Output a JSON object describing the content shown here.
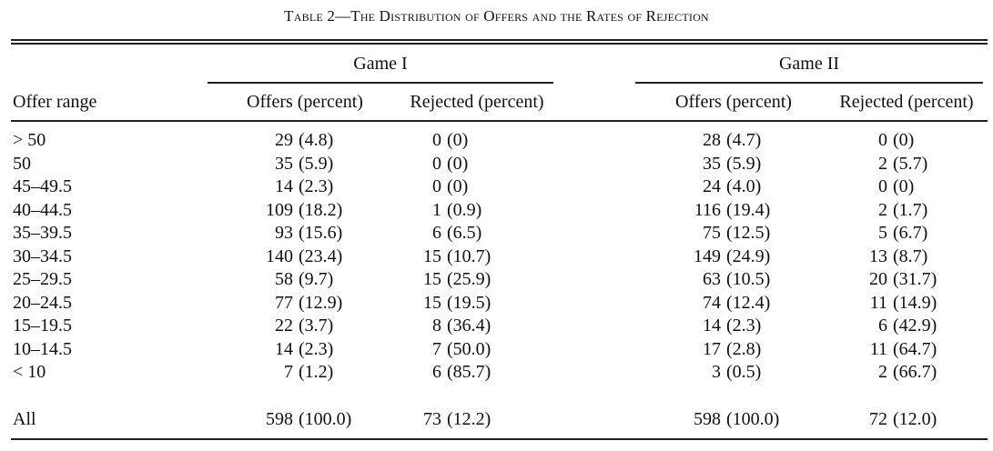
{
  "table": {
    "title": "Table 2—The Distribution of Offers and the Rates of Rejection",
    "row_header": "Offer range",
    "groups": [
      {
        "label": "Game I",
        "columns": [
          "Offers (percent)",
          "Rejected (percent)"
        ]
      },
      {
        "label": "Game II",
        "columns": [
          "Offers (percent)",
          "Rejected (percent)"
        ]
      }
    ],
    "rows": [
      {
        "range": "> 50",
        "g1_offers": "29",
        "g1_offers_pct": "(4.8)",
        "g1_rej": "0",
        "g1_rej_pct": "(0)",
        "g2_offers": "28",
        "g2_offers_pct": "(4.7)",
        "g2_rej": "0",
        "g2_rej_pct": "(0)"
      },
      {
        "range": "50",
        "g1_offers": "35",
        "g1_offers_pct": "(5.9)",
        "g1_rej": "0",
        "g1_rej_pct": "(0)",
        "g2_offers": "35",
        "g2_offers_pct": "(5.9)",
        "g2_rej": "2",
        "g2_rej_pct": "(5.7)"
      },
      {
        "range": "45–49.5",
        "g1_offers": "14",
        "g1_offers_pct": "(2.3)",
        "g1_rej": "0",
        "g1_rej_pct": "(0)",
        "g2_offers": "24",
        "g2_offers_pct": "(4.0)",
        "g2_rej": "0",
        "g2_rej_pct": "(0)"
      },
      {
        "range": "40–44.5",
        "g1_offers": "109",
        "g1_offers_pct": "(18.2)",
        "g1_rej": "1",
        "g1_rej_pct": "(0.9)",
        "g2_offers": "116",
        "g2_offers_pct": "(19.4)",
        "g2_rej": "2",
        "g2_rej_pct": "(1.7)"
      },
      {
        "range": "35–39.5",
        "g1_offers": "93",
        "g1_offers_pct": "(15.6)",
        "g1_rej": "6",
        "g1_rej_pct": "(6.5)",
        "g2_offers": "75",
        "g2_offers_pct": "(12.5)",
        "g2_rej": "5",
        "g2_rej_pct": "(6.7)"
      },
      {
        "range": "30–34.5",
        "g1_offers": "140",
        "g1_offers_pct": "(23.4)",
        "g1_rej": "15",
        "g1_rej_pct": "(10.7)",
        "g2_offers": "149",
        "g2_offers_pct": "(24.9)",
        "g2_rej": "13",
        "g2_rej_pct": "(8.7)"
      },
      {
        "range": "25–29.5",
        "g1_offers": "58",
        "g1_offers_pct": "(9.7)",
        "g1_rej": "15",
        "g1_rej_pct": "(25.9)",
        "g2_offers": "63",
        "g2_offers_pct": "(10.5)",
        "g2_rej": "20",
        "g2_rej_pct": "(31.7)"
      },
      {
        "range": "20–24.5",
        "g1_offers": "77",
        "g1_offers_pct": "(12.9)",
        "g1_rej": "15",
        "g1_rej_pct": "(19.5)",
        "g2_offers": "74",
        "g2_offers_pct": "(12.4)",
        "g2_rej": "11",
        "g2_rej_pct": "(14.9)"
      },
      {
        "range": "15–19.5",
        "g1_offers": "22",
        "g1_offers_pct": "(3.7)",
        "g1_rej": "8",
        "g1_rej_pct": "(36.4)",
        "g2_offers": "14",
        "g2_offers_pct": "(2.3)",
        "g2_rej": "6",
        "g2_rej_pct": "(42.9)"
      },
      {
        "range": "10–14.5",
        "g1_offers": "14",
        "g1_offers_pct": "(2.3)",
        "g1_rej": "7",
        "g1_rej_pct": "(50.0)",
        "g2_offers": "17",
        "g2_offers_pct": "(2.8)",
        "g2_rej": "11",
        "g2_rej_pct": "(64.7)"
      },
      {
        "range": "< 10",
        "g1_offers": "7",
        "g1_offers_pct": "(1.2)",
        "g1_rej": "6",
        "g1_rej_pct": "(85.7)",
        "g2_offers": "3",
        "g2_offers_pct": "(0.5)",
        "g2_rej": "2",
        "g2_rej_pct": "(66.7)"
      }
    ],
    "total": {
      "range": "All",
      "g1_offers": "598",
      "g1_offers_pct": "(100.0)",
      "g1_rej": "73",
      "g1_rej_pct": "(12.2)",
      "g2_offers": "598",
      "g2_offers_pct": "(100.0)",
      "g2_rej": "72",
      "g2_rej_pct": "(12.0)"
    }
  }
}
